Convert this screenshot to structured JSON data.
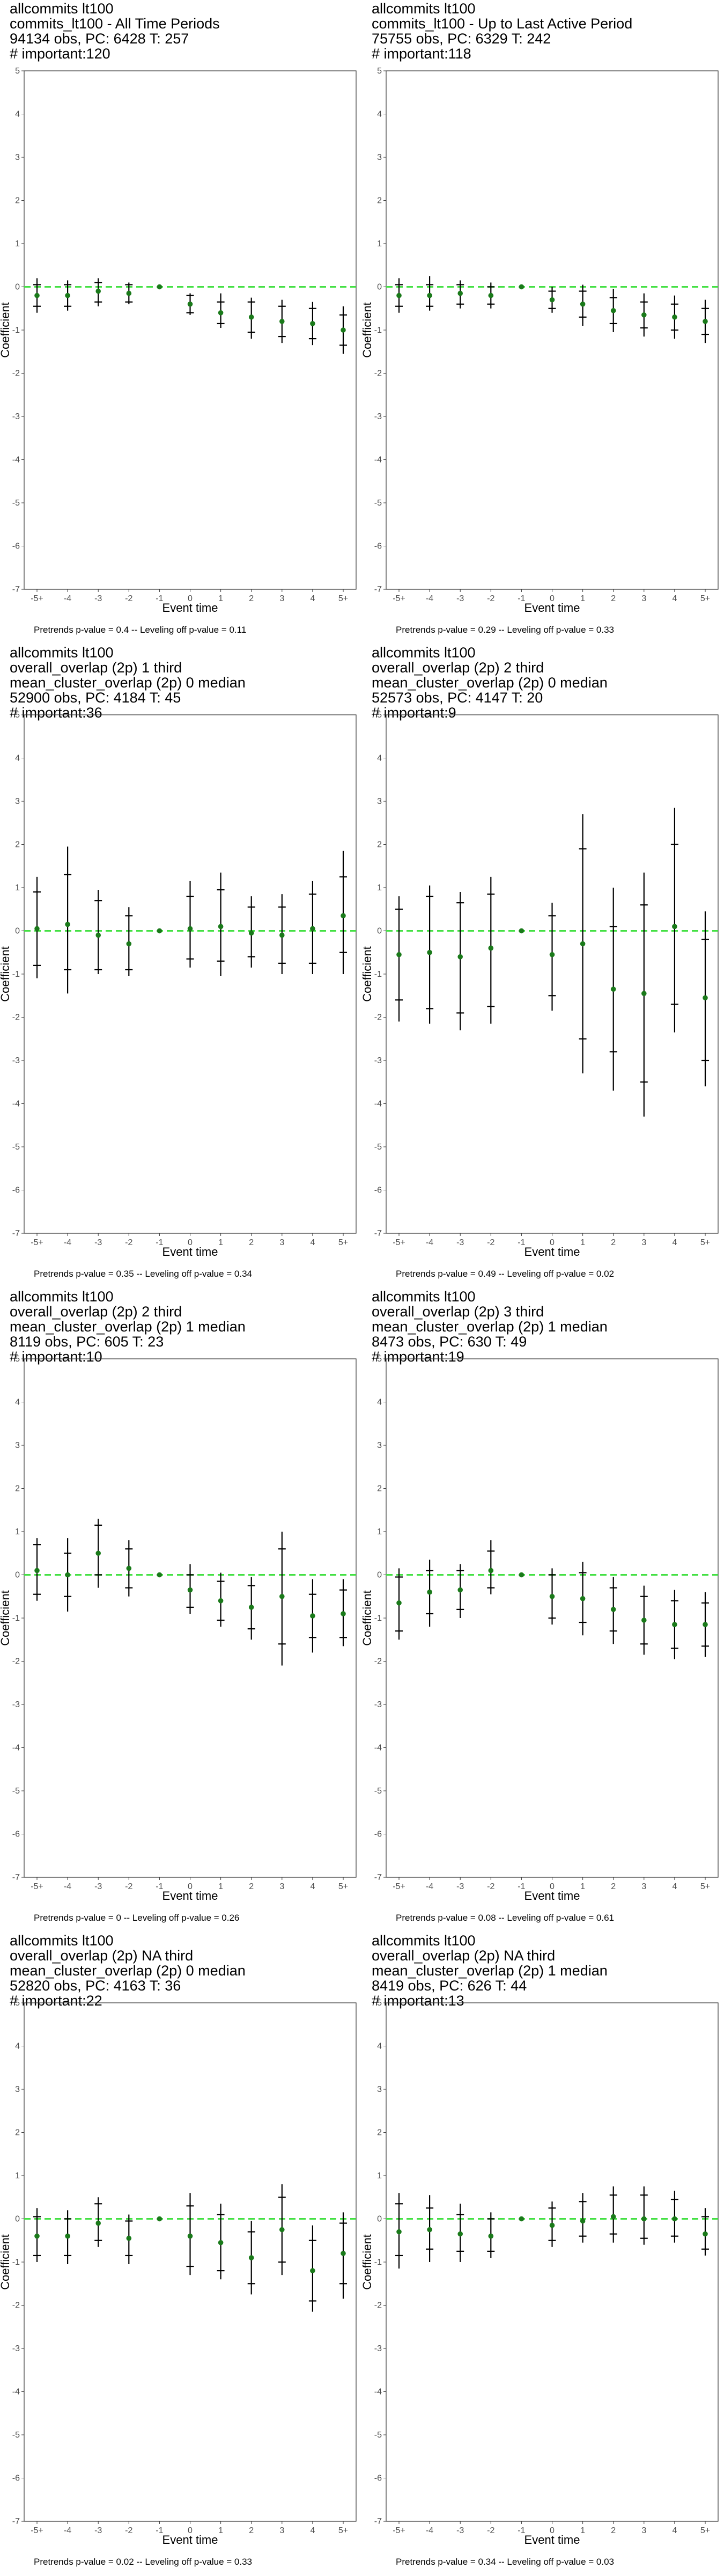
{
  "colors": {
    "point": "#1a7a1a",
    "zero_line": "#44e044",
    "error_bar": "#000000",
    "frame": "#333333"
  },
  "chart_data": [
    {
      "type": "scatter",
      "title_lines": [
        "allcommits lt100",
        "commits_lt100 - All Time Periods",
        "94134 obs, PC: 6428 T: 257",
        "# important:120"
      ],
      "caption": "Pretrends p-value = 0.4 -- Leveling off p-value = 0.11",
      "xlabel": "Event time",
      "ylabel": "Coefficient",
      "categories": [
        "-5+",
        "-4",
        "-3",
        "-2",
        "-1",
        "0",
        "1",
        "2",
        "3",
        "4",
        "5+"
      ],
      "yticks": [
        "5",
        "4",
        "3",
        "2",
        "1",
        "0",
        "-1",
        "-2",
        "-3",
        "-4",
        "-5",
        "-6",
        "-7"
      ],
      "ylim": [
        -7,
        5
      ],
      "values": [
        -0.2,
        -0.2,
        -0.1,
        -0.15,
        0,
        -0.4,
        -0.6,
        -0.7,
        -0.8,
        -0.85,
        -1.0
      ],
      "ci_inner": [
        [
          -0.45,
          0.05
        ],
        [
          -0.45,
          0.05
        ],
        [
          -0.35,
          0.1
        ],
        [
          -0.35,
          0.05
        ],
        [
          0,
          0
        ],
        [
          -0.6,
          -0.2
        ],
        [
          -0.85,
          -0.35
        ],
        [
          -1.05,
          -0.35
        ],
        [
          -1.15,
          -0.45
        ],
        [
          -1.2,
          -0.5
        ],
        [
          -1.35,
          -0.65
        ]
      ],
      "ci_outer": [
        [
          -0.6,
          0.2
        ],
        [
          -0.55,
          0.15
        ],
        [
          -0.45,
          0.2
        ],
        [
          -0.4,
          0.1
        ],
        [
          0,
          0
        ],
        [
          -0.65,
          -0.15
        ],
        [
          -0.95,
          -0.15
        ],
        [
          -1.2,
          -0.25
        ],
        [
          -1.3,
          -0.3
        ],
        [
          -1.35,
          -0.35
        ],
        [
          -1.55,
          -0.45
        ]
      ],
      "grid": false
    },
    {
      "type": "scatter",
      "title_lines": [
        "allcommits lt100",
        "commits_lt100 - Up to Last Active Period",
        "75755 obs, PC: 6329 T: 242",
        "# important:118"
      ],
      "caption": "Pretrends p-value = 0.29 -- Leveling off p-value = 0.33",
      "xlabel": "Event time",
      "ylabel": "Coefficient",
      "categories": [
        "-5+",
        "-4",
        "-3",
        "-2",
        "-1",
        "0",
        "1",
        "2",
        "3",
        "4",
        "5+"
      ],
      "yticks": [
        "5",
        "4",
        "3",
        "2",
        "1",
        "0",
        "-1",
        "-2",
        "-3",
        "-4",
        "-5",
        "-6",
        "-7"
      ],
      "ylim": [
        -7,
        5
      ],
      "values": [
        -0.2,
        -0.2,
        -0.15,
        -0.2,
        0,
        -0.3,
        -0.4,
        -0.55,
        -0.65,
        -0.7,
        -0.8
      ],
      "ci_inner": [
        [
          -0.45,
          0.05
        ],
        [
          -0.45,
          0.05
        ],
        [
          -0.4,
          0.05
        ],
        [
          -0.4,
          0.0
        ],
        [
          0,
          0
        ],
        [
          -0.5,
          -0.1
        ],
        [
          -0.7,
          -0.1
        ],
        [
          -0.85,
          -0.25
        ],
        [
          -0.95,
          -0.35
        ],
        [
          -1.0,
          -0.4
        ],
        [
          -1.1,
          -0.5
        ]
      ],
      "ci_outer": [
        [
          -0.6,
          0.2
        ],
        [
          -0.55,
          0.25
        ],
        [
          -0.5,
          0.15
        ],
        [
          -0.5,
          0.1
        ],
        [
          0,
          0
        ],
        [
          -0.6,
          0.0
        ],
        [
          -0.9,
          0.05
        ],
        [
          -1.05,
          -0.05
        ],
        [
          -1.15,
          -0.15
        ],
        [
          -1.2,
          -0.2
        ],
        [
          -1.3,
          -0.3
        ]
      ],
      "grid": false
    },
    {
      "type": "scatter",
      "title_lines": [
        "allcommits lt100",
        "overall_overlap (2p) 1 third",
        "mean_cluster_overlap (2p) 0 median",
        "52900 obs, PC: 4184 T: 45",
        "# important:36"
      ],
      "caption": "Pretrends p-value = 0.35 -- Leveling off p-value = 0.34",
      "xlabel": "Event time",
      "ylabel": "Coefficient",
      "categories": [
        "-5+",
        "-4",
        "-3",
        "-2",
        "-1",
        "0",
        "1",
        "2",
        "3",
        "4",
        "5+"
      ],
      "yticks": [
        "5",
        "4",
        "3",
        "2",
        "1",
        "0",
        "-1",
        "-2",
        "-3",
        "-4",
        "-5",
        "-6",
        "-7"
      ],
      "ylim": [
        -7,
        5
      ],
      "values": [
        0.05,
        0.15,
        -0.1,
        -0.3,
        0,
        0.05,
        0.1,
        -0.05,
        -0.1,
        0.05,
        0.35
      ],
      "ci_inner": [
        [
          -0.8,
          0.9
        ],
        [
          -0.9,
          1.3
        ],
        [
          -0.9,
          0.7
        ],
        [
          -0.9,
          0.35
        ],
        [
          0,
          0
        ],
        [
          -0.65,
          0.8
        ],
        [
          -0.7,
          0.95
        ],
        [
          -0.6,
          0.55
        ],
        [
          -0.75,
          0.55
        ],
        [
          -0.75,
          0.85
        ],
        [
          -0.5,
          1.25
        ]
      ],
      "ci_outer": [
        [
          -1.1,
          1.25
        ],
        [
          -1.45,
          1.95
        ],
        [
          -1.0,
          0.95
        ],
        [
          -1.05,
          0.55
        ],
        [
          0,
          0
        ],
        [
          -0.85,
          1.15
        ],
        [
          -1.05,
          1.35
        ],
        [
          -0.85,
          0.8
        ],
        [
          -1.0,
          0.85
        ],
        [
          -1.0,
          1.15
        ],
        [
          -1.0,
          1.85
        ]
      ],
      "grid": false
    },
    {
      "type": "scatter",
      "title_lines": [
        "allcommits lt100",
        "overall_overlap (2p) 2 third",
        "mean_cluster_overlap (2p) 0 median",
        "52573 obs, PC: 4147 T: 20",
        "# important:9"
      ],
      "caption": "Pretrends p-value = 0.49 -- Leveling off p-value = 0.02",
      "xlabel": "Event time",
      "ylabel": "Coefficient",
      "categories": [
        "-5+",
        "-4",
        "-3",
        "-2",
        "-1",
        "0",
        "1",
        "2",
        "3",
        "4",
        "5+"
      ],
      "yticks": [
        "5",
        "4",
        "3",
        "2",
        "1",
        "0",
        "-1",
        "-2",
        "-3",
        "-4",
        "-5",
        "-6",
        "-7"
      ],
      "ylim": [
        -7,
        5
      ],
      "values": [
        -0.55,
        -0.5,
        -0.6,
        -0.4,
        0,
        -0.55,
        -0.3,
        -1.35,
        -1.45,
        0.1,
        -1.55
      ],
      "ci_inner": [
        [
          -1.6,
          0.5
        ],
        [
          -1.8,
          0.8
        ],
        [
          -1.9,
          0.65
        ],
        [
          -1.75,
          0.85
        ],
        [
          0,
          0
        ],
        [
          -1.5,
          0.35
        ],
        [
          -2.5,
          1.9
        ],
        [
          -2.8,
          0.1
        ],
        [
          -3.5,
          0.6
        ],
        [
          -1.7,
          2.0
        ],
        [
          -3.0,
          -0.2
        ]
      ],
      "ci_outer": [
        [
          -2.1,
          0.8
        ],
        [
          -2.15,
          1.05
        ],
        [
          -2.3,
          0.9
        ],
        [
          -2.15,
          1.25
        ],
        [
          0,
          0
        ],
        [
          -1.85,
          0.65
        ],
        [
          -3.3,
          2.7
        ],
        [
          -3.7,
          1.0
        ],
        [
          -4.3,
          1.35
        ],
        [
          -2.35,
          2.85
        ],
        [
          -3.6,
          0.45
        ]
      ],
      "grid": false
    },
    {
      "type": "scatter",
      "title_lines": [
        "allcommits lt100",
        "overall_overlap (2p) 2 third",
        "mean_cluster_overlap (2p) 1 median",
        "8119 obs, PC: 605 T: 23",
        "# important:10"
      ],
      "caption": "Pretrends p-value = 0 -- Leveling off p-value = 0.26",
      "xlabel": "Event time",
      "ylabel": "Coefficient",
      "categories": [
        "-5+",
        "-4",
        "-3",
        "-2",
        "-1",
        "0",
        "1",
        "2",
        "3",
        "4",
        "5+"
      ],
      "yticks": [
        "5",
        "4",
        "3",
        "2",
        "1",
        "0",
        "-1",
        "-2",
        "-3",
        "-4",
        "-5",
        "-6",
        "-7"
      ],
      "ylim": [
        -7,
        5
      ],
      "values": [
        0.1,
        0.0,
        0.5,
        0.15,
        0,
        -0.35,
        -0.6,
        -0.75,
        -0.5,
        -0.95,
        -0.9
      ],
      "ci_inner": [
        [
          -0.45,
          0.7
        ],
        [
          -0.5,
          0.5
        ],
        [
          0.0,
          1.15
        ],
        [
          -0.3,
          0.6
        ],
        [
          0,
          0
        ],
        [
          -0.75,
          0.0
        ],
        [
          -1.05,
          -0.15
        ],
        [
          -1.25,
          -0.25
        ],
        [
          -1.6,
          0.6
        ],
        [
          -1.45,
          -0.45
        ],
        [
          -1.45,
          -0.35
        ]
      ],
      "ci_outer": [
        [
          -0.6,
          0.85
        ],
        [
          -0.85,
          0.85
        ],
        [
          -0.3,
          1.3
        ],
        [
          -0.5,
          0.8
        ],
        [
          0,
          0
        ],
        [
          -0.9,
          0.25
        ],
        [
          -1.2,
          0.05
        ],
        [
          -1.5,
          -0.05
        ],
        [
          -2.1,
          1.0
        ],
        [
          -1.8,
          -0.1
        ],
        [
          -1.65,
          -0.1
        ]
      ],
      "grid": false
    },
    {
      "type": "scatter",
      "title_lines": [
        "allcommits lt100",
        "overall_overlap (2p) 3 third",
        "mean_cluster_overlap (2p) 1 median",
        "8473 obs, PC: 630 T: 49",
        "# important:19"
      ],
      "caption": "Pretrends p-value = 0.08 -- Leveling off p-value = 0.61",
      "xlabel": "Event time",
      "ylabel": "Coefficient",
      "categories": [
        "-5+",
        "-4",
        "-3",
        "-2",
        "-1",
        "0",
        "1",
        "2",
        "3",
        "4",
        "5+"
      ],
      "yticks": [
        "5",
        "4",
        "3",
        "2",
        "1",
        "0",
        "-1",
        "-2",
        "-3",
        "-4",
        "-5",
        "-6",
        "-7"
      ],
      "ylim": [
        -7,
        5
      ],
      "values": [
        -0.65,
        -0.4,
        -0.35,
        0.1,
        0,
        -0.5,
        -0.55,
        -0.8,
        -1.05,
        -1.15,
        -1.15
      ],
      "ci_inner": [
        [
          -1.3,
          -0.05
        ],
        [
          -0.9,
          0.1
        ],
        [
          -0.8,
          0.1
        ],
        [
          -0.3,
          0.55
        ],
        [
          0,
          0
        ],
        [
          -1.0,
          0.0
        ],
        [
          -1.1,
          0.05
        ],
        [
          -1.3,
          -0.3
        ],
        [
          -1.6,
          -0.5
        ],
        [
          -1.7,
          -0.6
        ],
        [
          -1.65,
          -0.65
        ]
      ],
      "ci_outer": [
        [
          -1.5,
          0.15
        ],
        [
          -1.2,
          0.35
        ],
        [
          -1.0,
          0.25
        ],
        [
          -0.45,
          0.8
        ],
        [
          0,
          0
        ],
        [
          -1.15,
          0.15
        ],
        [
          -1.4,
          0.3
        ],
        [
          -1.6,
          -0.05
        ],
        [
          -1.85,
          -0.25
        ],
        [
          -1.95,
          -0.35
        ],
        [
          -1.9,
          -0.4
        ]
      ],
      "grid": false
    },
    {
      "type": "scatter",
      "title_lines": [
        "allcommits lt100",
        "overall_overlap (2p) NA third",
        "mean_cluster_overlap (2p) 0 median",
        "52820 obs, PC: 4163 T: 36",
        "# important:22"
      ],
      "caption": "Pretrends p-value = 0.02 -- Leveling off p-value = 0.33",
      "xlabel": "Event time",
      "ylabel": "Coefficient",
      "categories": [
        "-5+",
        "-4",
        "-3",
        "-2",
        "-1",
        "0",
        "1",
        "2",
        "3",
        "4",
        "5+"
      ],
      "yticks": [
        "5",
        "4",
        "3",
        "2",
        "1",
        "0",
        "-1",
        "-2",
        "-3",
        "-4",
        "-5",
        "-6",
        "-7"
      ],
      "ylim": [
        -7,
        5
      ],
      "values": [
        -0.4,
        -0.4,
        -0.1,
        -0.45,
        0,
        -0.4,
        -0.55,
        -0.9,
        -0.25,
        -1.2,
        -0.8
      ],
      "ci_inner": [
        [
          -0.85,
          0.05
        ],
        [
          -0.85,
          0.0
        ],
        [
          -0.5,
          0.35
        ],
        [
          -0.85,
          -0.05
        ],
        [
          0,
          0
        ],
        [
          -1.1,
          0.3
        ],
        [
          -1.2,
          0.1
        ],
        [
          -1.5,
          -0.3
        ],
        [
          -1.0,
          0.5
        ],
        [
          -1.9,
          -0.5
        ],
        [
          -1.5,
          -0.1
        ]
      ],
      "ci_outer": [
        [
          -1.0,
          0.25
        ],
        [
          -1.05,
          0.2
        ],
        [
          -0.65,
          0.5
        ],
        [
          -1.05,
          0.1
        ],
        [
          0,
          0
        ],
        [
          -1.3,
          0.6
        ],
        [
          -1.4,
          0.35
        ],
        [
          -1.75,
          -0.05
        ],
        [
          -1.3,
          0.8
        ],
        [
          -2.15,
          -0.15
        ],
        [
          -1.85,
          0.15
        ]
      ],
      "grid": false
    },
    {
      "type": "scatter",
      "title_lines": [
        "allcommits lt100",
        "overall_overlap (2p) NA third",
        "mean_cluster_overlap (2p) 1 median",
        "8419 obs, PC: 626 T: 44",
        "# important:13"
      ],
      "caption": "Pretrends p-value = 0.34 -- Leveling off p-value = 0.03",
      "xlabel": "Event time",
      "ylabel": "Coefficient",
      "categories": [
        "-5+",
        "-4",
        "-3",
        "-2",
        "-1",
        "0",
        "1",
        "2",
        "3",
        "4",
        "5+"
      ],
      "yticks": [
        "5",
        "4",
        "3",
        "2",
        "1",
        "0",
        "-1",
        "-2",
        "-3",
        "-4",
        "-5",
        "-6",
        "-7"
      ],
      "ylim": [
        -7,
        5
      ],
      "values": [
        -0.3,
        -0.25,
        -0.35,
        -0.4,
        0,
        -0.15,
        -0.05,
        0.05,
        0.0,
        0.0,
        -0.35
      ],
      "ci_inner": [
        [
          -0.85,
          0.35
        ],
        [
          -0.7,
          0.25
        ],
        [
          -0.75,
          0.1
        ],
        [
          -0.75,
          0.0
        ],
        [
          0,
          0
        ],
        [
          -0.5,
          0.25
        ],
        [
          -0.4,
          0.4
        ],
        [
          -0.35,
          0.55
        ],
        [
          -0.45,
          0.55
        ],
        [
          -0.4,
          0.45
        ],
        [
          -0.7,
          0.05
        ]
      ],
      "ci_outer": [
        [
          -1.15,
          0.6
        ],
        [
          -1.0,
          0.55
        ],
        [
          -1.0,
          0.35
        ],
        [
          -0.9,
          0.15
        ],
        [
          0,
          0
        ],
        [
          -0.65,
          0.4
        ],
        [
          -0.55,
          0.6
        ],
        [
          -0.55,
          0.75
        ],
        [
          -0.6,
          0.75
        ],
        [
          -0.55,
          0.65
        ],
        [
          -0.85,
          0.25
        ]
      ],
      "grid": false
    }
  ]
}
